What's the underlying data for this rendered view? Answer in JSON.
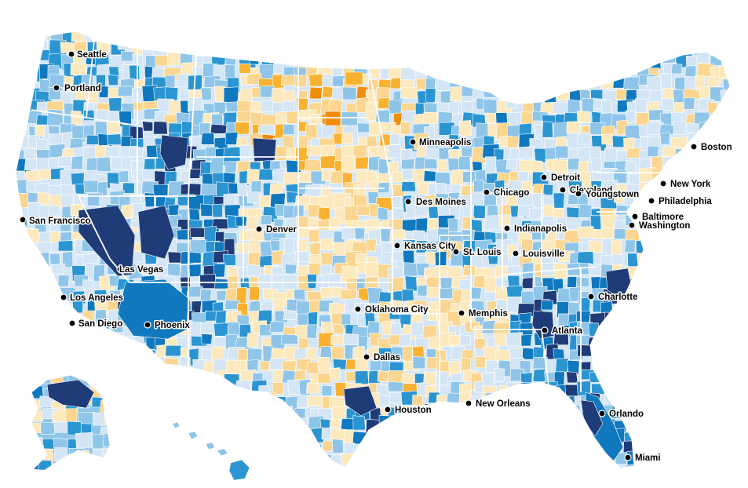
{
  "map": {
    "type": "choropleth",
    "palette": {
      "dark_blue": "#1f3c78",
      "blue": "#1078be",
      "mid_blue": "#2b95d2",
      "light_blue": "#8fc5e9",
      "pale_blue": "#d4e6f5",
      "pale_yellow": "#fde9be",
      "light_orange": "#fbd690",
      "orange": "#f8b230",
      "dark_orange": "#f28c0c"
    },
    "cities": [
      "Seattle",
      "Portland",
      "San Francisco",
      "Los Angeles",
      "San Diego",
      "Las Vegas",
      "Phoenix",
      "Denver",
      "Minneapolis",
      "Des Moines",
      "Kansas City",
      "St. Louis",
      "Chicago",
      "Detroit",
      "Cleveland",
      "Youngstown",
      "Indianapolis",
      "Louisville",
      "Oklahoma City",
      "Dallas",
      "Houston",
      "Memphis",
      "New Orleans",
      "Atlanta",
      "Charlotte",
      "Orlando",
      "Miami",
      "Boston",
      "New York",
      "Philadelphia",
      "Baltimore",
      "Washington"
    ]
  }
}
